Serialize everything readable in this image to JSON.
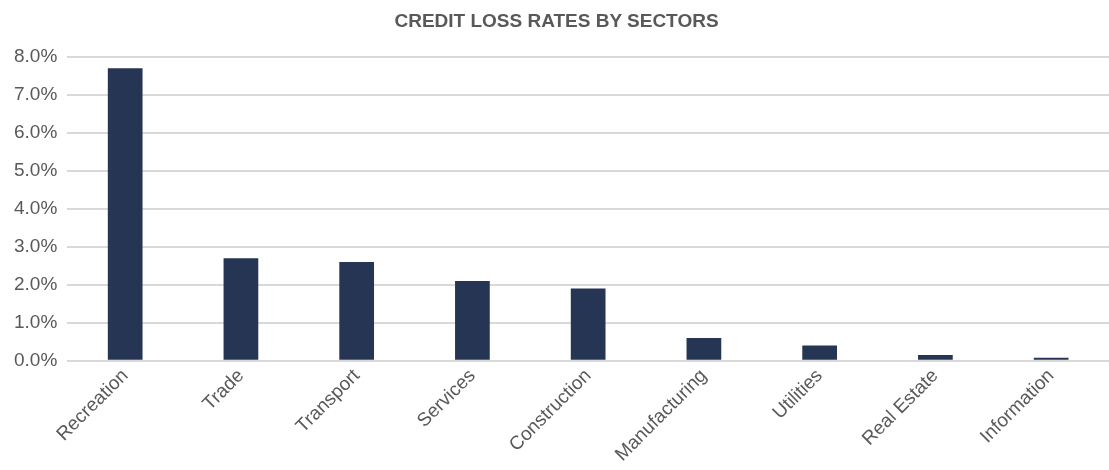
{
  "chart_data": {
    "type": "bar",
    "title": "CREDIT LOSS RATES BY SECTORS",
    "categories": [
      "Recreation",
      "Trade",
      "Transport",
      "Services",
      "Construction",
      "Manufacturing",
      "Utilities",
      "Real Estate",
      "Information"
    ],
    "values": [
      7.7,
      2.7,
      2.6,
      2.1,
      1.9,
      0.6,
      0.4,
      0.15,
      0.08
    ],
    "color": "#263553",
    "ylim": [
      0,
      8
    ],
    "yticks": [
      {
        "value": 0,
        "label": "0.0%"
      },
      {
        "value": 1,
        "label": "1.0%"
      },
      {
        "value": 2,
        "label": "2.0%"
      },
      {
        "value": 3,
        "label": "3.0%"
      },
      {
        "value": 4,
        "label": "4.0%"
      },
      {
        "value": 5,
        "label": "5.0%"
      },
      {
        "value": 6,
        "label": "6.0%"
      },
      {
        "value": 7,
        "label": "7.0%"
      },
      {
        "value": 8,
        "label": "8.0%"
      }
    ],
    "grid": "y",
    "legend": false
  }
}
